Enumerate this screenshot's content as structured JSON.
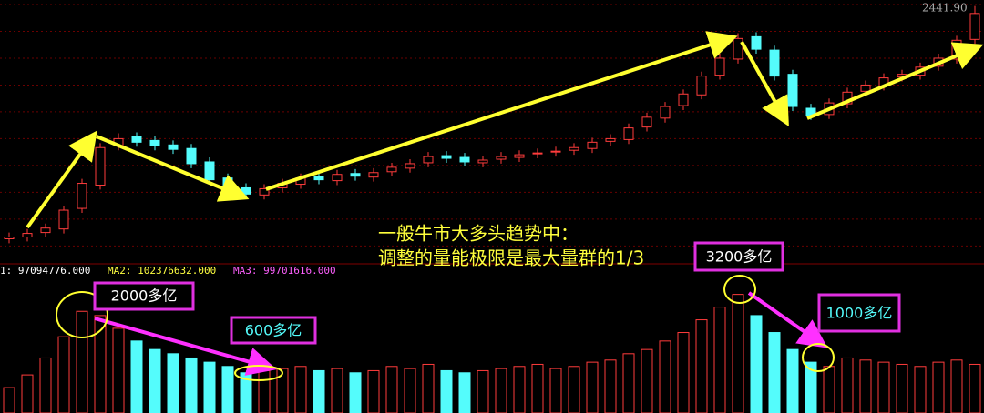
{
  "chart_data": [
    {
      "type": "candlestick",
      "annotations": [
        "2441.90",
        "一般牛市大多头趋势中：",
        "调整的量能极限是最大量群的1/3"
      ],
      "open": [
        1140,
        1150,
        1175,
        1195,
        1310,
        1440,
        1660,
        1710,
        1690,
        1665,
        1645,
        1570,
        1480,
        1425,
        1385,
        1425,
        1445,
        1490,
        1465,
        1505,
        1485,
        1515,
        1535,
        1565,
        1605,
        1595,
        1565,
        1585,
        1595,
        1615,
        1625,
        1635,
        1645,
        1685,
        1695,
        1765,
        1815,
        1885,
        1945,
        2055,
        2145,
        2270,
        2195,
        2060,
        1870,
        1835,
        1895,
        1965,
        1995,
        2045,
        2055,
        2105,
        2145,
        2255
      ],
      "close": [
        1150,
        1170,
        1200,
        1300,
        1450,
        1650,
        1700,
        1680,
        1660,
        1640,
        1560,
        1470,
        1420,
        1390,
        1420,
        1450,
        1480,
        1470,
        1500,
        1490,
        1510,
        1540,
        1560,
        1600,
        1590,
        1570,
        1580,
        1600,
        1610,
        1620,
        1630,
        1650,
        1680,
        1700,
        1760,
        1820,
        1880,
        1950,
        2050,
        2150,
        2260,
        2200,
        2050,
        1880,
        1830,
        1900,
        1960,
        2000,
        2040,
        2060,
        2100,
        2150,
        2250,
        2400
      ],
      "high": [
        1175,
        1195,
        1225,
        1325,
        1475,
        1675,
        1730,
        1735,
        1715,
        1690,
        1670,
        1595,
        1505,
        1450,
        1445,
        1475,
        1505,
        1515,
        1525,
        1530,
        1535,
        1565,
        1585,
        1625,
        1630,
        1620,
        1605,
        1625,
        1635,
        1645,
        1655,
        1675,
        1705,
        1725,
        1785,
        1845,
        1905,
        1975,
        2075,
        2175,
        2290,
        2295,
        2220,
        2085,
        1895,
        1925,
        1985,
        2025,
        2065,
        2085,
        2125,
        2175,
        2275,
        2441.9
      ],
      "low": [
        1115,
        1125,
        1150,
        1170,
        1285,
        1415,
        1635,
        1655,
        1635,
        1615,
        1535,
        1445,
        1395,
        1365,
        1360,
        1400,
        1420,
        1445,
        1440,
        1465,
        1460,
        1490,
        1510,
        1540,
        1565,
        1545,
        1540,
        1560,
        1570,
        1590,
        1600,
        1610,
        1620,
        1660,
        1670,
        1740,
        1790,
        1860,
        1920,
        2030,
        2120,
        2175,
        2025,
        1855,
        1805,
        1810,
        1870,
        1940,
        1970,
        2020,
        2030,
        2080,
        2120,
        2230
      ],
      "up_color": "#ff3c3c",
      "down_color": "#54fcfc",
      "ylim": [
        1000,
        2450
      ],
      "yticks": [
        1100,
        1250,
        1400,
        1550,
        1700,
        1850,
        2000,
        2150,
        2300,
        2450
      ],
      "grid": true
    },
    {
      "type": "bar",
      "annotations": [
        "1: 97094776.000",
        "MA2: 102376632.000",
        "MA3: 99701616.000",
        "2000多亿",
        "600多亿",
        "3200多亿",
        "1000多亿"
      ],
      "values": [
        60000000,
        90000000,
        130000000,
        180000000,
        240000000,
        230000000,
        200000000,
        170000000,
        150000000,
        140000000,
        130000000,
        120000000,
        110000000,
        95000000,
        100000000,
        105000000,
        110000000,
        100000000,
        105000000,
        95000000,
        100000000,
        110000000,
        105000000,
        115000000,
        100000000,
        95000000,
        100000000,
        105000000,
        110000000,
        115000000,
        105000000,
        110000000,
        120000000,
        125000000,
        140000000,
        150000000,
        170000000,
        190000000,
        220000000,
        250000000,
        280000000,
        230000000,
        190000000,
        150000000,
        120000000,
        110000000,
        130000000,
        125000000,
        120000000,
        115000000,
        110000000,
        120000000,
        125000000,
        115000000
      ],
      "ylim": [
        0,
        320000000
      ]
    }
  ]
}
